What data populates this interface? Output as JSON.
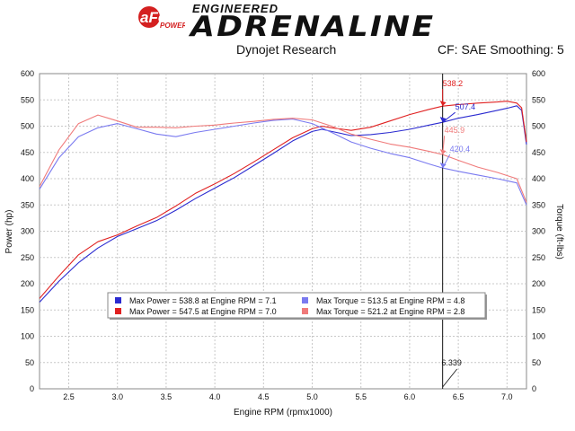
{
  "header": {
    "engineered": "ENGINEERED",
    "adrenaline": "ADRENALINE",
    "subtitle_left": "Dynojet Research",
    "subtitle_right": "CF: SAE Smoothing: 5"
  },
  "chart_data": {
    "type": "line",
    "xlabel": "Engine RPM (rpmx1000)",
    "ylabel_left": "Power (hp)",
    "ylabel_right": "Torque (ft-lbs)",
    "xlim": [
      2.2,
      7.2
    ],
    "ylim": [
      0,
      600
    ],
    "xticks": [
      2.5,
      3.0,
      3.5,
      4.0,
      4.5,
      5.0,
      5.5,
      6.0,
      6.5,
      7.0
    ],
    "yticks": [
      0,
      50,
      100,
      150,
      200,
      250,
      300,
      350,
      400,
      450,
      500,
      550,
      600
    ],
    "grid": true,
    "cursor": {
      "x": 6.339,
      "label": "6.339"
    },
    "colors": {
      "blue_power": "#2a2ad0",
      "red_power": "#e02020",
      "blue_torque": "#7a7af0",
      "red_torque": "#f07a7a"
    },
    "series": [
      {
        "name": "Max Power = 538.8 at Engine RPM = 7.1",
        "color": "#2a2ad0",
        "axis": "left",
        "x": [
          2.2,
          2.4,
          2.6,
          2.8,
          3.0,
          3.2,
          3.4,
          3.6,
          3.8,
          4.0,
          4.2,
          4.4,
          4.6,
          4.8,
          5.0,
          5.1,
          5.2,
          5.4,
          5.6,
          5.8,
          6.0,
          6.2,
          6.339,
          6.5,
          6.7,
          6.9,
          7.0,
          7.1,
          7.15,
          7.2
        ],
        "values": [
          165,
          205,
          240,
          268,
          290,
          305,
          320,
          340,
          362,
          382,
          402,
          425,
          448,
          472,
          490,
          494,
          490,
          482,
          484,
          488,
          494,
          502,
          507.4,
          515,
          522,
          530,
          534,
          538.8,
          530,
          465
        ]
      },
      {
        "name": "Max Power = 547.5 at Engine RPM = 7.0",
        "color": "#e02020",
        "axis": "left",
        "x": [
          2.2,
          2.4,
          2.6,
          2.8,
          3.0,
          3.2,
          3.4,
          3.6,
          3.8,
          4.0,
          4.2,
          4.4,
          4.6,
          4.8,
          5.0,
          5.1,
          5.2,
          5.4,
          5.6,
          5.8,
          6.0,
          6.2,
          6.339,
          6.5,
          6.7,
          6.9,
          7.0,
          7.1,
          7.15,
          7.2
        ],
        "values": [
          172,
          215,
          255,
          280,
          293,
          310,
          326,
          348,
          372,
          390,
          410,
          432,
          455,
          478,
          495,
          500,
          497,
          492,
          498,
          510,
          522,
          532,
          538.2,
          541,
          544,
          546,
          547.5,
          544,
          535,
          470
        ]
      },
      {
        "name": "Max Torque = 513.5 at Engine RPM = 4.8",
        "color": "#7a7af0",
        "axis": "right",
        "x": [
          2.2,
          2.4,
          2.6,
          2.8,
          3.0,
          3.2,
          3.4,
          3.6,
          3.8,
          4.0,
          4.2,
          4.4,
          4.6,
          4.8,
          5.0,
          5.2,
          5.4,
          5.6,
          5.8,
          6.0,
          6.2,
          6.339,
          6.5,
          6.7,
          6.9,
          7.0,
          7.1,
          7.2
        ],
        "values": [
          380,
          440,
          480,
          497,
          505,
          495,
          485,
          480,
          488,
          494,
          500,
          506,
          511,
          513.5,
          505,
          488,
          470,
          458,
          448,
          440,
          428,
          420.4,
          414,
          407,
          400,
          396,
          392,
          350
        ]
      },
      {
        "name": "Max Torque = 521.2 at Engine RPM = 2.8",
        "color": "#f07a7a",
        "axis": "right",
        "x": [
          2.2,
          2.4,
          2.6,
          2.8,
          3.0,
          3.2,
          3.4,
          3.6,
          3.8,
          4.0,
          4.2,
          4.4,
          4.6,
          4.8,
          5.0,
          5.2,
          5.4,
          5.6,
          5.8,
          6.0,
          6.2,
          6.339,
          6.5,
          6.7,
          6.9,
          7.0,
          7.1,
          7.2
        ],
        "values": [
          385,
          455,
          505,
          521.2,
          510,
          498,
          498,
          497,
          500,
          502,
          506,
          509,
          513,
          515,
          512,
          500,
          485,
          475,
          466,
          460,
          452,
          445.9,
          435,
          422,
          412,
          406,
          400,
          355
        ]
      }
    ],
    "legend": [
      {
        "label": "Max Power = 538.8 at Engine RPM = 7.1",
        "color": "#2a2ad0"
      },
      {
        "label": "Max Torque = 513.5 at Engine RPM = 4.8",
        "color": "#7a7af0"
      },
      {
        "label": "Max Power = 547.5 at Engine RPM = 7.0",
        "color": "#e02020"
      },
      {
        "label": "Max Torque = 521.2 at Engine RPM = 2.8",
        "color": "#f07a7a"
      }
    ],
    "annotations": [
      {
        "text": "538.2",
        "x": 6.339,
        "y": 538.2,
        "color": "#e02020"
      },
      {
        "text": "507.4",
        "x": 6.339,
        "y": 507.4,
        "color": "#2a2ad0"
      },
      {
        "text": "445.9",
        "x": 6.339,
        "y": 445.9,
        "color": "#f07a7a"
      },
      {
        "text": "420.4",
        "x": 6.339,
        "y": 420.4,
        "color": "#7a7af0"
      }
    ]
  }
}
